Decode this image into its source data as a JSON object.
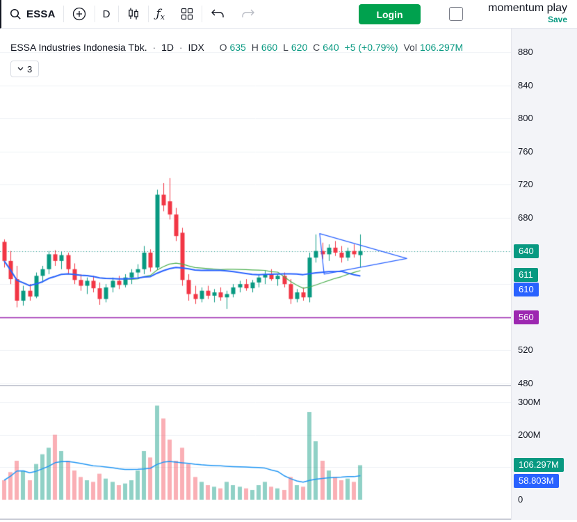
{
  "toolbar": {
    "symbol": "ESSA",
    "interval": "D",
    "login_label": "Login",
    "layout_name": "momentum play",
    "save_label": "Save"
  },
  "header": {
    "title": "ESSA Industries Indonesia Tbk.",
    "dot": "·",
    "interval": "1D",
    "exchange": "IDX",
    "o_label": "O",
    "o_value": "635",
    "h_label": "H",
    "h_value": "660",
    "l_label": "L",
    "l_value": "620",
    "c_label": "C",
    "c_value": "640",
    "change": "+5 (+0.79%)",
    "vol_label": "Vol",
    "vol_value": "106.297M",
    "indicators_count": "3"
  },
  "colors": {
    "up": "#089981",
    "down": "#F23645",
    "vol_up": "rgba(8,153,129,0.45)",
    "vol_down": "rgba(242,54,69,0.4)",
    "ma_fast": "#4CAF50",
    "ma_slow": "#2962FF",
    "vol_ma": "#2196F3",
    "drawing": "#2962FF",
    "level_line": "#9C27B0",
    "close_line": "#089981",
    "value_text": "#089981",
    "login_bg": "#00A14E",
    "save_text": "#089981",
    "badge_green": "#089981",
    "badge_blue": "#2962FF",
    "badge_purple": "#9C27B0",
    "grid": "#EEF0F4"
  },
  "price_axis": {
    "ticks": [
      880,
      840,
      800,
      760,
      720,
      680,
      520,
      480
    ],
    "grid_levels": [
      880,
      840,
      800,
      760,
      720,
      680,
      640,
      600,
      560,
      520,
      480
    ],
    "badges": [
      {
        "label": "640",
        "value": 640,
        "color_key": "badge_green"
      },
      {
        "label": "611",
        "value": 611,
        "color_key": "badge_green"
      },
      {
        "label": "610",
        "value": 610,
        "color_key": "badge_blue"
      },
      {
        "label": "560",
        "value": 560,
        "color_key": "badge_purple"
      }
    ]
  },
  "volume_axis": {
    "ticks": [
      {
        "label": "300M",
        "value": 300
      },
      {
        "label": "200M",
        "value": 200
      },
      {
        "label": "0",
        "value": 0
      }
    ],
    "grid_levels": [
      300,
      200,
      100
    ],
    "badges": [
      {
        "label": "106.297M",
        "value": 106.297,
        "color_key": "badge_green"
      },
      {
        "label": "58.803M",
        "value": 58.803,
        "color_key": "badge_blue"
      }
    ]
  },
  "chart_data": {
    "type": "candlestick",
    "title": "ESSA Industries Indonesia Tbk., 1D, IDX",
    "ylim": [
      480,
      880
    ],
    "volume_ylim_millions": [
      0,
      300
    ],
    "last": {
      "open": 635,
      "high": 660,
      "low": 620,
      "close": 640,
      "change": "+5 (+0.79%)",
      "volume": "106.297M"
    },
    "candles": [
      [
        651,
        654,
        620,
        628
      ],
      [
        628,
        640,
        600,
        606
      ],
      [
        606,
        622,
        572,
        580
      ],
      [
        580,
        598,
        574,
        592
      ],
      [
        592,
        600,
        580,
        585
      ],
      [
        585,
        614,
        583,
        610
      ],
      [
        610,
        622,
        602,
        618
      ],
      [
        618,
        640,
        612,
        636
      ],
      [
        636,
        641,
        622,
        628
      ],
      [
        628,
        639,
        618,
        635
      ],
      [
        635,
        638,
        612,
        618
      ],
      [
        618,
        625,
        600,
        605
      ],
      [
        605,
        612,
        592,
        598
      ],
      [
        598,
        608,
        588,
        604
      ],
      [
        604,
        610,
        590,
        595
      ],
      [
        595,
        602,
        575,
        582
      ],
      [
        582,
        600,
        578,
        596
      ],
      [
        596,
        608,
        590,
        604
      ],
      [
        604,
        610,
        594,
        599
      ],
      [
        599,
        612,
        596,
        608
      ],
      [
        608,
        618,
        600,
        614
      ],
      [
        614,
        624,
        606,
        618
      ],
      [
        618,
        646,
        612,
        638
      ],
      [
        638,
        642,
        615,
        620
      ],
      [
        620,
        714,
        617,
        708
      ],
      [
        708,
        722,
        688,
        695
      ],
      [
        700,
        728,
        678,
        684
      ],
      [
        684,
        692,
        652,
        658
      ],
      [
        662,
        668,
        598,
        605
      ],
      [
        605,
        612,
        580,
        588
      ],
      [
        588,
        598,
        576,
        582
      ],
      [
        582,
        596,
        578,
        592
      ],
      [
        592,
        598,
        582,
        586
      ],
      [
        586,
        594,
        578,
        590
      ],
      [
        590,
        596,
        580,
        584
      ],
      [
        584,
        592,
        570,
        588
      ],
      [
        588,
        600,
        584,
        596
      ],
      [
        596,
        604,
        590,
        600
      ],
      [
        600,
        606,
        592,
        595
      ],
      [
        595,
        605,
        590,
        602
      ],
      [
        602,
        612,
        596,
        608
      ],
      [
        608,
        616,
        600,
        612
      ],
      [
        612,
        618,
        604,
        606
      ],
      [
        606,
        612,
        598,
        610
      ],
      [
        610,
        614,
        596,
        600
      ],
      [
        600,
        606,
        576,
        582
      ],
      [
        582,
        594,
        578,
        590
      ],
      [
        590,
        596,
        580,
        584
      ],
      [
        584,
        638,
        578,
        632
      ],
      [
        632,
        660,
        626,
        640
      ],
      [
        640,
        650,
        630,
        636
      ],
      [
        636,
        648,
        628,
        644
      ],
      [
        644,
        652,
        634,
        638
      ],
      [
        638,
        646,
        626,
        632
      ],
      [
        632,
        644,
        628,
        640
      ],
      [
        640,
        648,
        632,
        636
      ],
      [
        635,
        660,
        620,
        640
      ]
    ],
    "volumes_millions": [
      60,
      85,
      120,
      90,
      60,
      110,
      140,
      160,
      200,
      150,
      120,
      90,
      70,
      60,
      55,
      80,
      65,
      55,
      45,
      50,
      60,
      90,
      150,
      130,
      290,
      250,
      185,
      120,
      160,
      110,
      70,
      55,
      45,
      40,
      35,
      55,
      45,
      40,
      35,
      30,
      45,
      55,
      40,
      35,
      30,
      70,
      45,
      40,
      270,
      180,
      120,
      90,
      70,
      60,
      65,
      55,
      106.297
    ],
    "overlays": {
      "ma_fast_period": 20,
      "ma_slow_period": 30,
      "vol_ma_period": 20,
      "close_price_line": 640,
      "horizontal_level": 560,
      "triangle_points": [
        [
          49.6,
          661
        ],
        [
          50.3,
          612
        ],
        [
          63.3,
          631
        ]
      ]
    }
  }
}
